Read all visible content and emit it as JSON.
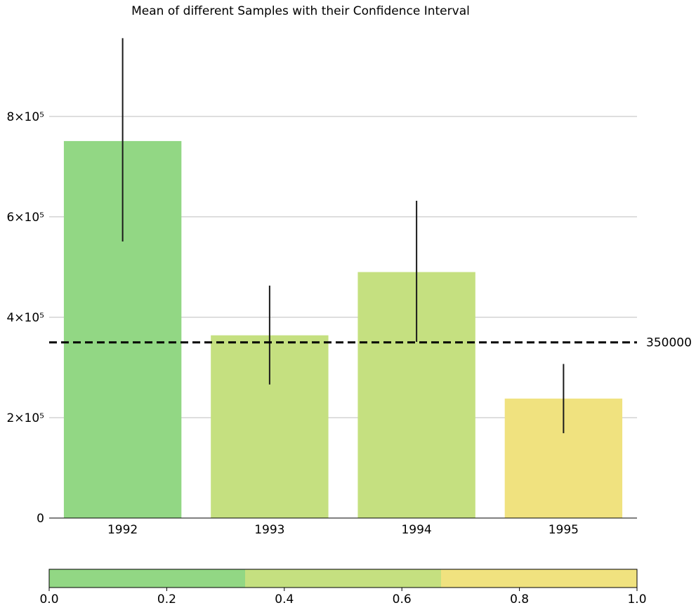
{
  "chart_data": {
    "type": "bar",
    "title": "Mean of different Samples with their Confidence Interval",
    "xlabel": "",
    "ylabel": "",
    "categories": [
      "1992",
      "1993",
      "1994",
      "1995"
    ],
    "values": [
      751000,
      364000,
      490000,
      238000
    ],
    "error_low": [
      551000,
      266000,
      351000,
      169000
    ],
    "error_high": [
      956000,
      463000,
      632000,
      307000
    ],
    "bar_colors": [
      "#92d784",
      "#c5e080",
      "#c5e080",
      "#f0e27f"
    ],
    "ylim": [
      0,
      990000
    ],
    "yticks": [
      {
        "value": 0,
        "label": "0"
      },
      {
        "value": 200000,
        "label": "2×10⁵"
      },
      {
        "value": 400000,
        "label": "4×10⁵"
      },
      {
        "value": 600000,
        "label": "6×10⁵"
      },
      {
        "value": 800000,
        "label": "8×10⁵"
      }
    ],
    "grid": "horizontal",
    "reference_line": {
      "value": 350000,
      "label": "350000",
      "style": "dashed",
      "color": "#000000"
    },
    "colorbar": {
      "orientation": "horizontal",
      "range": [
        0.0,
        1.0
      ],
      "segments": [
        "#92d784",
        "#c5e080",
        "#f0e27f"
      ],
      "ticks": [
        "0.0",
        "0.2",
        "0.4",
        "0.6",
        "0.8",
        "1.0"
      ]
    }
  }
}
